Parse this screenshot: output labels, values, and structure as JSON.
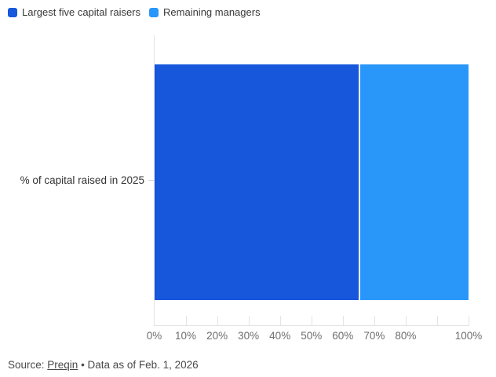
{
  "chart_data": {
    "type": "bar",
    "orientation": "horizontal",
    "stacked": true,
    "title": "",
    "categories": [
      "% of capital raised in 2025"
    ],
    "series": [
      {
        "name": "Largest five capital raisers",
        "value": 65,
        "color": "#1657DB"
      },
      {
        "name": "Remaining managers",
        "value": 35,
        "color": "#2997F9"
      }
    ],
    "xlim": [
      0,
      100
    ],
    "x_ticks": [
      0,
      10,
      20,
      30,
      40,
      50,
      60,
      70,
      80,
      90,
      100
    ],
    "x_tick_labels": [
      "0%",
      "10%",
      "20%",
      "30%",
      "40%",
      "50%",
      "60%",
      "70%",
      "80%",
      "",
      "100%"
    ],
    "grid": "axis-ticks-only",
    "legend_position": "top-left",
    "axis_color": "#e4e4e4",
    "tick_label_color": "#6e6e6e"
  },
  "source": {
    "prefix": "Source: ",
    "link_text": "Preqin",
    "suffix": " • Data as of Feb. 1, 2026"
  }
}
